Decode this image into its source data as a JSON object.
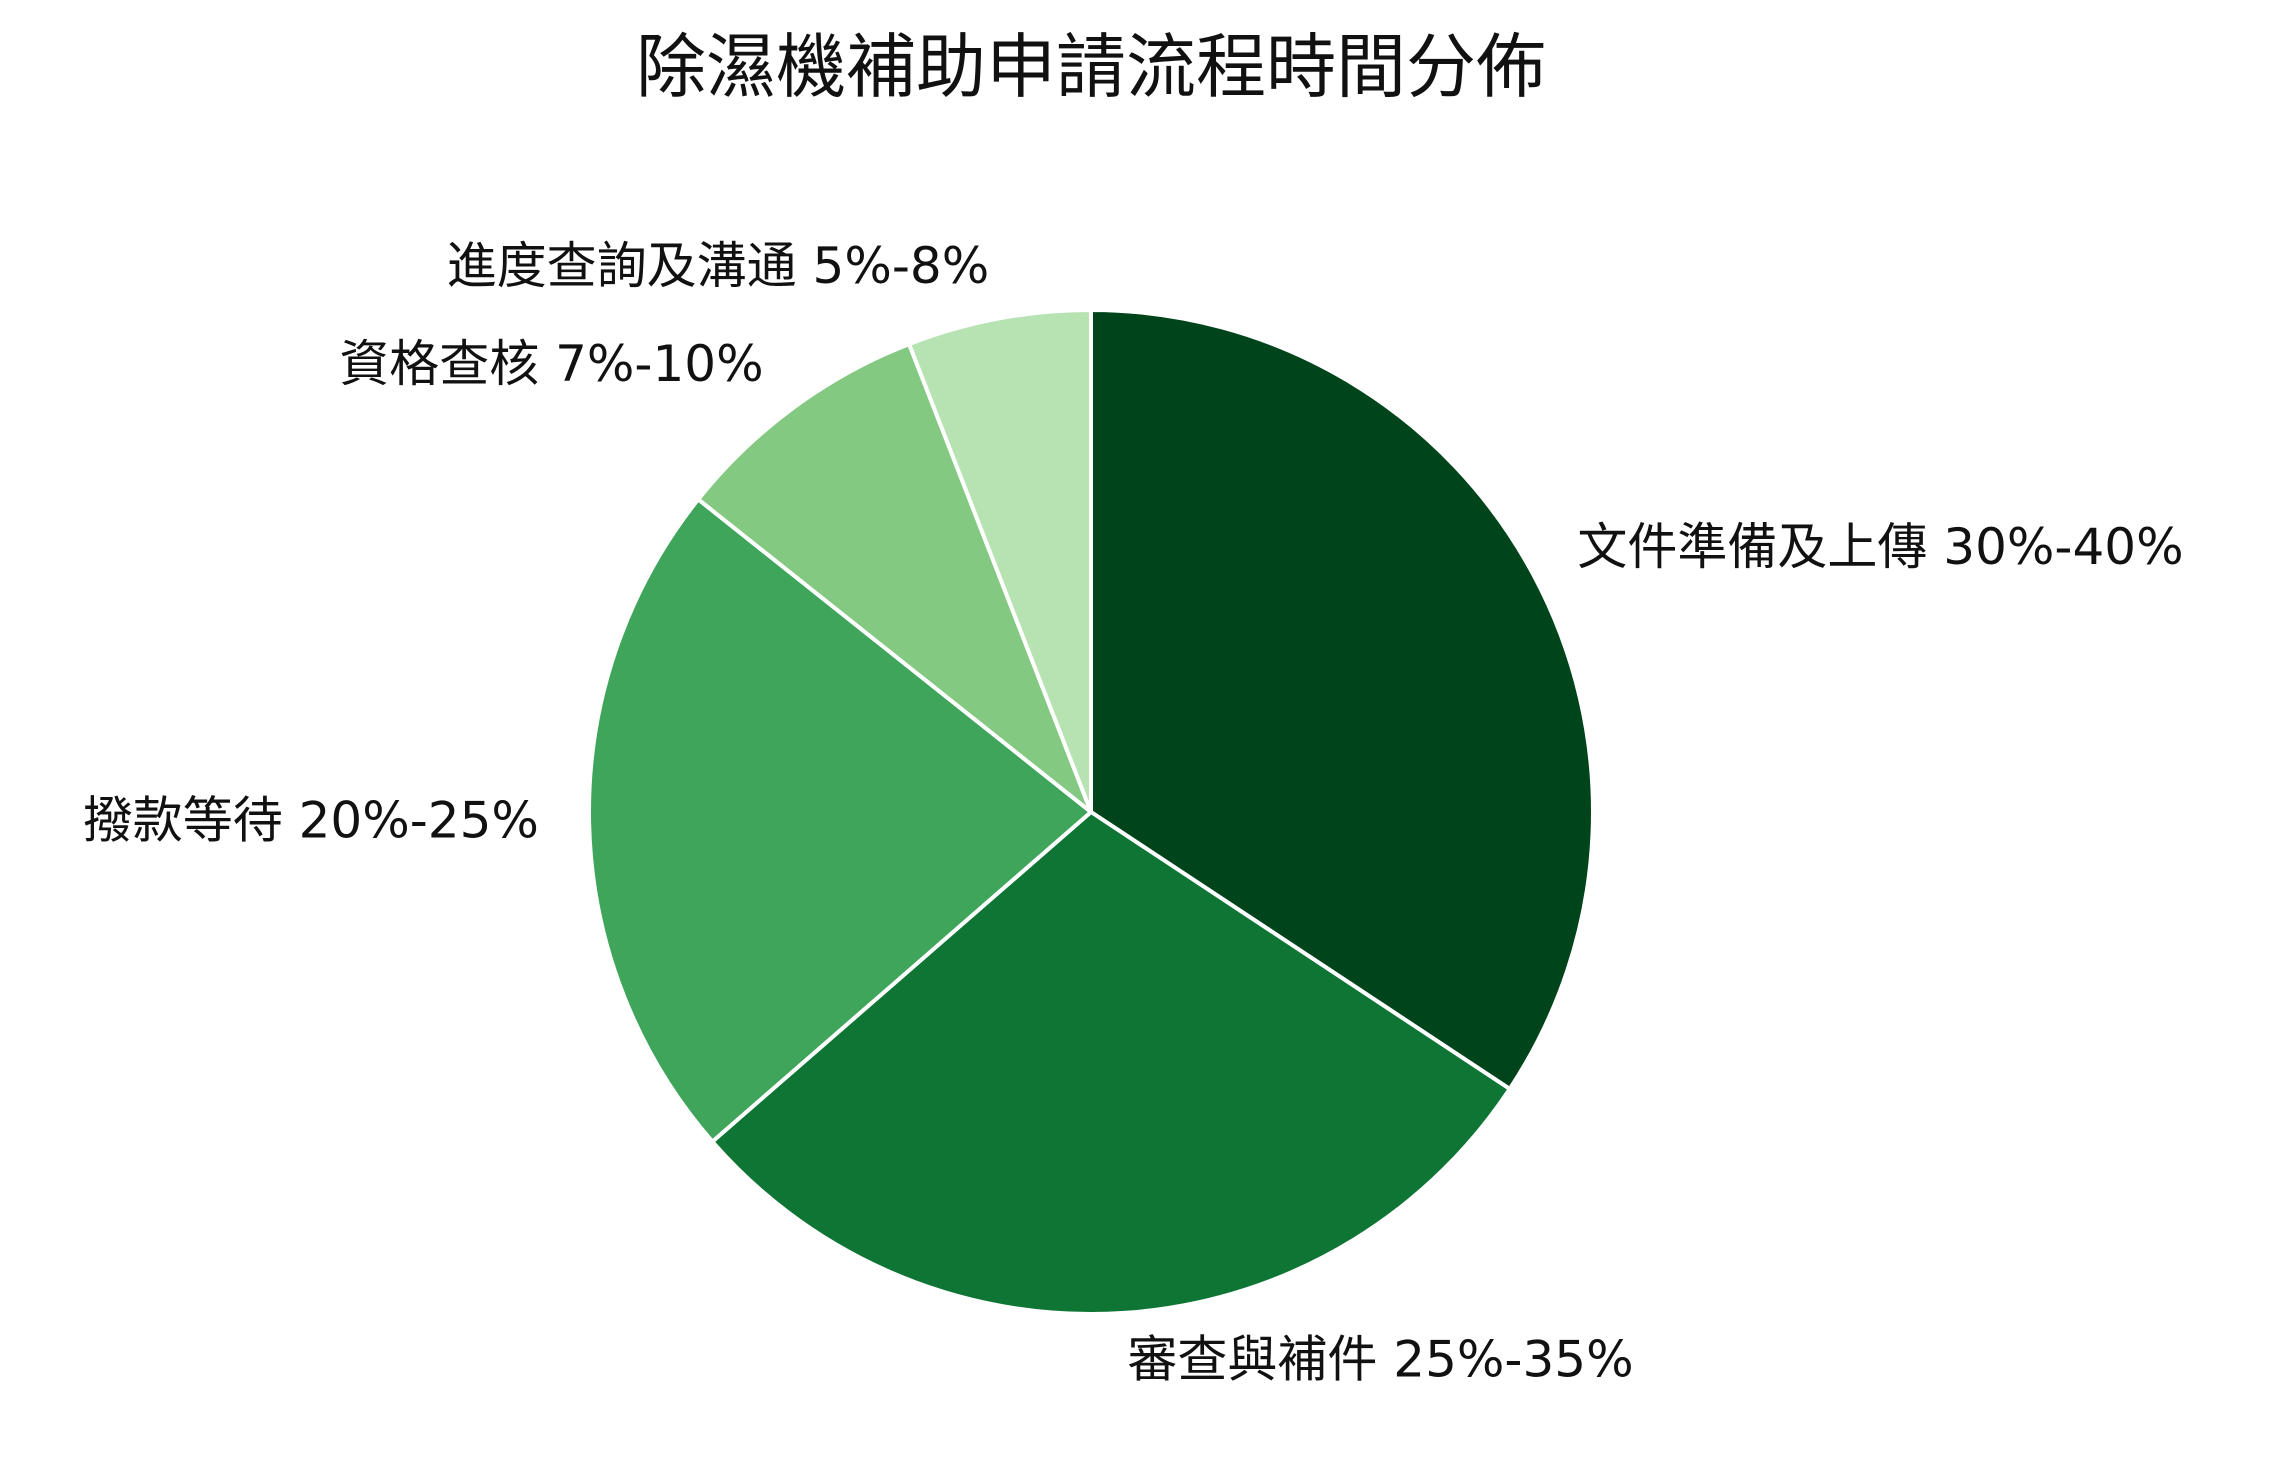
{
  "chart_data": {
    "type": "pie",
    "title": "除濕機補助申請流程時間分佈",
    "categories": [
      "文件準備及上傳 30%-40%",
      "審查與補件 25%-35%",
      "撥款等待 20%-25%",
      "資格查核 7%-10%",
      "進度查詢及溝通 5%-8%"
    ],
    "values": [
      34.3,
      29.3,
      22.1,
      8.4,
      5.9
    ],
    "colors": [
      "#00441b",
      "#0e7535",
      "#3fa55b",
      "#83c982",
      "#b7e2b2"
    ]
  }
}
